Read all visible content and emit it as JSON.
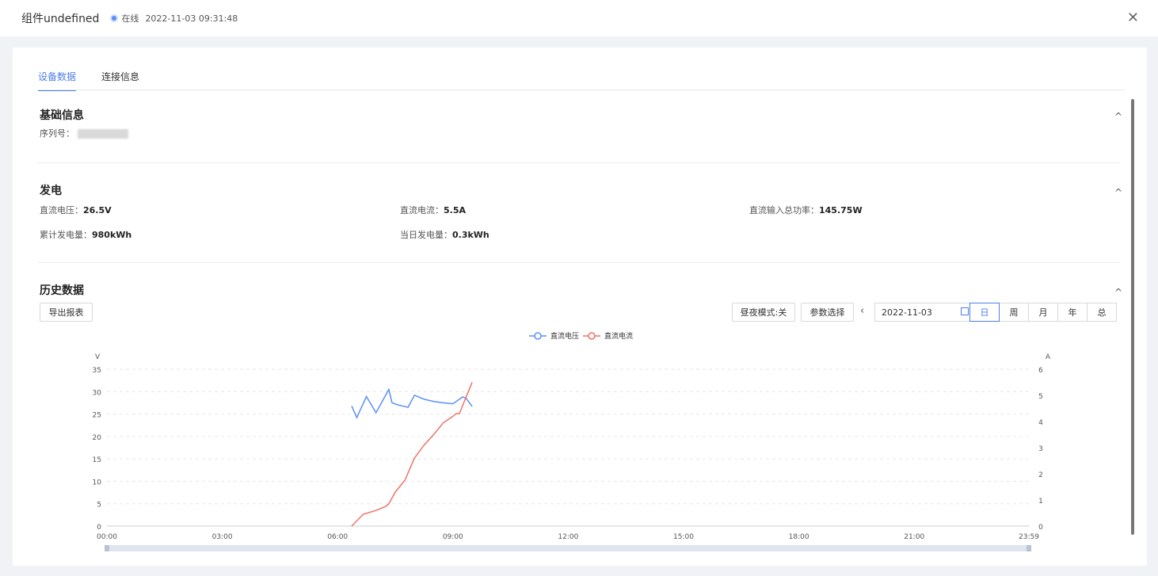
{
  "header": {
    "title": "组件undefined",
    "status": "在线",
    "timestamp": "2022-11-03 09:31:48",
    "close_icon": "✕"
  },
  "tabs": [
    {
      "label": "设备数据",
      "active": true
    },
    {
      "label": "连接信息",
      "active": false
    }
  ],
  "basic": {
    "title": "基础信息",
    "serial_label": "序列号："
  },
  "power": {
    "title": "发电",
    "dc_voltage_label": "直流电压：",
    "dc_voltage": "26.5V",
    "dc_current_label": "直流电流：",
    "dc_current": "5.5A",
    "dc_power_label": "直流输入总功率：",
    "dc_power": "145.75W",
    "total_energy_label": "累计发电量：",
    "total_energy": "980kWh",
    "daily_energy_label": "当日发电量：",
    "daily_energy": "0.3kWh"
  },
  "history": {
    "title": "历史数据",
    "export_label": "导出报表",
    "daynight_label": "昼夜模式:关",
    "param_label": "参数选择",
    "prev_icon": "‹",
    "date_value": "2022-11-03",
    "ranges": [
      "日",
      "周",
      "月",
      "年",
      "总"
    ],
    "active_range": "日"
  },
  "collapse_icon": "^",
  "colors": {
    "accent": "#4d7ee8",
    "voltage": "#5b8ff9",
    "current": "#f07167"
  },
  "chart_data": {
    "type": "line",
    "legend": [
      "直流电压",
      "直流电流"
    ],
    "y_left_label": "V",
    "y_right_label": "A",
    "y_left_ticks": [
      0,
      5,
      10,
      15,
      20,
      25,
      30,
      35
    ],
    "y_right_ticks": [
      0,
      1,
      2,
      3,
      4,
      5,
      6
    ],
    "x_ticks": [
      "00:00",
      "03:00",
      "06:00",
      "09:00",
      "12:00",
      "15:00",
      "18:00",
      "21:00",
      "23:59"
    ],
    "ylim_left": [
      0,
      35
    ],
    "ylim_right": [
      0,
      6
    ],
    "series": [
      {
        "name": "直流电压",
        "axis": "left",
        "x": [
          "06:22",
          "06:30",
          "06:45",
          "07:00",
          "07:20",
          "07:25",
          "07:35",
          "07:50",
          "08:00",
          "08:15",
          "08:30",
          "08:45",
          "09:00",
          "09:15",
          "09:20",
          "09:30"
        ],
        "values": [
          26.8,
          24.2,
          28.9,
          25.3,
          30.5,
          27.5,
          27.0,
          26.5,
          29.2,
          28.3,
          27.8,
          27.5,
          27.3,
          28.8,
          28.6,
          26.7
        ]
      },
      {
        "name": "直流电流",
        "axis": "right",
        "x": [
          "06:22",
          "06:40",
          "07:00",
          "07:15",
          "07:20",
          "07:30",
          "07:45",
          "08:00",
          "08:15",
          "08:30",
          "08:45",
          "09:00",
          "09:05",
          "09:10",
          "09:20",
          "09:30"
        ],
        "values": [
          0,
          0.45,
          0.6,
          0.75,
          0.85,
          1.3,
          1.75,
          2.6,
          3.1,
          3.5,
          3.95,
          4.2,
          4.3,
          4.3,
          4.9,
          5.5
        ]
      }
    ]
  }
}
